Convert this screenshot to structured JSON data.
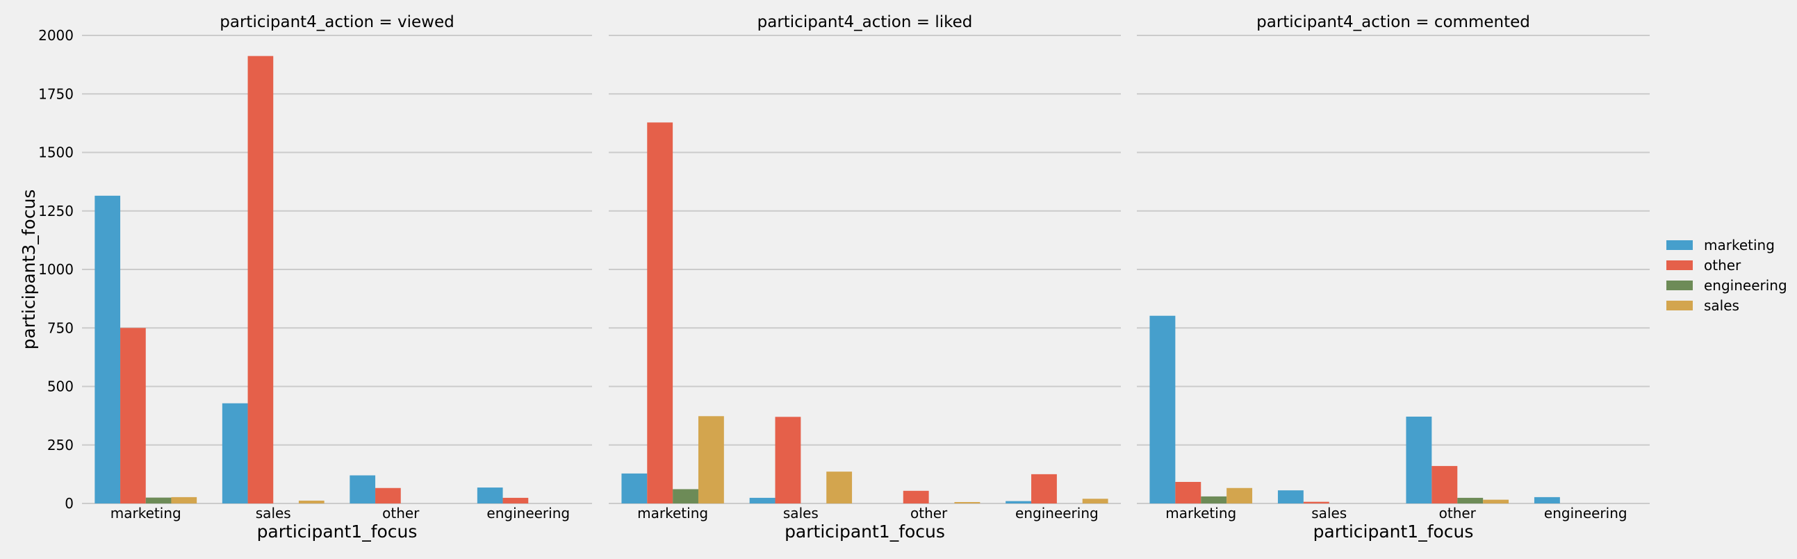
{
  "chart_data": {
    "type": "bar",
    "hue_order": [
      "marketing",
      "other",
      "engineering",
      "sales"
    ],
    "facets": [
      {
        "title": "participant4_action = viewed",
        "categories": [
          "marketing",
          "sales",
          "other",
          "engineering"
        ],
        "series": [
          {
            "name": "marketing",
            "values": [
              1315,
              428,
              120,
              68
            ]
          },
          {
            "name": "other",
            "values": [
              750,
              1912,
              66,
              24
            ]
          },
          {
            "name": "engineering",
            "values": [
              25,
              0,
              0,
              0
            ]
          },
          {
            "name": "sales",
            "values": [
              27,
              12,
              0,
              0
            ]
          }
        ]
      },
      {
        "title": "participant4_action = liked",
        "categories": [
          "marketing",
          "sales",
          "other",
          "engineering"
        ],
        "series": [
          {
            "name": "marketing",
            "values": [
              128,
              24,
              0,
              10
            ]
          },
          {
            "name": "other",
            "values": [
              1628,
              370,
              54,
              125
            ]
          },
          {
            "name": "engineering",
            "values": [
              61,
              0,
              0,
              0
            ]
          },
          {
            "name": "sales",
            "values": [
              373,
              136,
              6,
              20
            ]
          }
        ]
      },
      {
        "title": "participant4_action = commented",
        "categories": [
          "marketing",
          "sales",
          "other",
          "engineering"
        ],
        "series": [
          {
            "name": "marketing",
            "values": [
              802,
              56,
              371,
              27
            ]
          },
          {
            "name": "other",
            "values": [
              92,
              7,
              160,
              0
            ]
          },
          {
            "name": "engineering",
            "values": [
              30,
              0,
              24,
              0
            ]
          },
          {
            "name": "sales",
            "values": [
              66,
              0,
              16,
              0
            ]
          }
        ]
      }
    ],
    "xlabel": "participant1_focus",
    "ylabel": "participant3_focus",
    "ylim": [
      0,
      2000
    ],
    "yticks": [
      0,
      250,
      500,
      750,
      1000,
      1250,
      1500,
      1750,
      2000
    ],
    "grid": "horizontal",
    "legend": {
      "placement": "right",
      "entries": [
        "marketing",
        "other",
        "engineering",
        "sales"
      ]
    },
    "colors": {
      "marketing": "#469fcc",
      "other": "#e5604a",
      "engineering": "#6d8b57",
      "sales": "#d3a54e"
    }
  }
}
